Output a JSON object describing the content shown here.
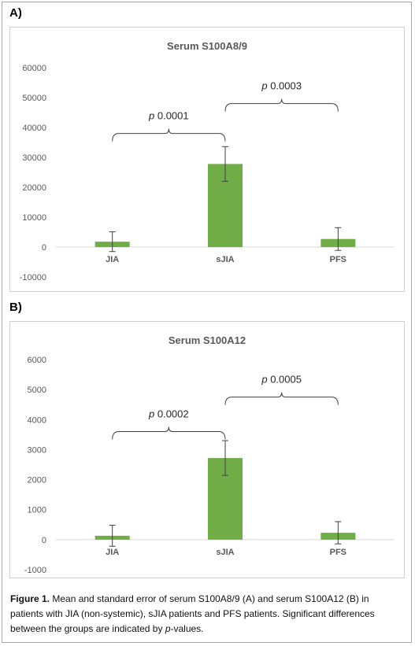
{
  "panels": [
    {
      "label": "A)"
    },
    {
      "label": "B)"
    }
  ],
  "chart_data": [
    {
      "type": "bar",
      "title": "Serum S100A8/9",
      "categories": [
        "JIA",
        "sJIA",
        "PFS"
      ],
      "values": [
        1800,
        27800,
        2700
      ],
      "errors": [
        3300,
        5800,
        3800
      ],
      "ylim": [
        -10000,
        60000
      ],
      "yticks": [
        "-10000",
        "0",
        "10000",
        "20000",
        "30000",
        "40000",
        "50000",
        "60000"
      ],
      "ytick_values": [
        -10000,
        0,
        10000,
        20000,
        30000,
        40000,
        50000,
        60000
      ],
      "grid": false,
      "bar_color": "#70ad47",
      "annotations": [
        {
          "italic": "p",
          "text": " 0.0001",
          "from": 0,
          "to": 1,
          "y": 38000
        },
        {
          "italic": "p",
          "text": " 0.0003",
          "from": 1,
          "to": 2,
          "y": 48000
        }
      ]
    },
    {
      "type": "bar",
      "title": "Serum S100A12",
      "categories": [
        "JIA",
        "sJIA",
        "PFS"
      ],
      "values": [
        130,
        2720,
        230
      ],
      "errors": [
        350,
        580,
        370
      ],
      "ylim": [
        -1000,
        6000
      ],
      "yticks": [
        "-1000",
        "0",
        "1000",
        "2000",
        "3000",
        "4000",
        "5000",
        "6000"
      ],
      "ytick_values": [
        -1000,
        0,
        1000,
        2000,
        3000,
        4000,
        5000,
        6000
      ],
      "grid": false,
      "bar_color": "#70ad47",
      "annotations": [
        {
          "italic": "p",
          "text": " 0.0002",
          "from": 0,
          "to": 1,
          "y": 3600
        },
        {
          "italic": "p",
          "text": " 0.0005",
          "from": 1,
          "to": 2,
          "y": 4750
        }
      ]
    }
  ],
  "caption": {
    "lead": "Figure 1.",
    "text1": " Mean and standard error of serum S100A8/9 (A) and serum S100A12 (B) in patients with JIA (non-systemic), sJIA patients and PFS patients. Significant differences between the groups are indicated by ",
    "italic": "p",
    "text2": "-values."
  }
}
